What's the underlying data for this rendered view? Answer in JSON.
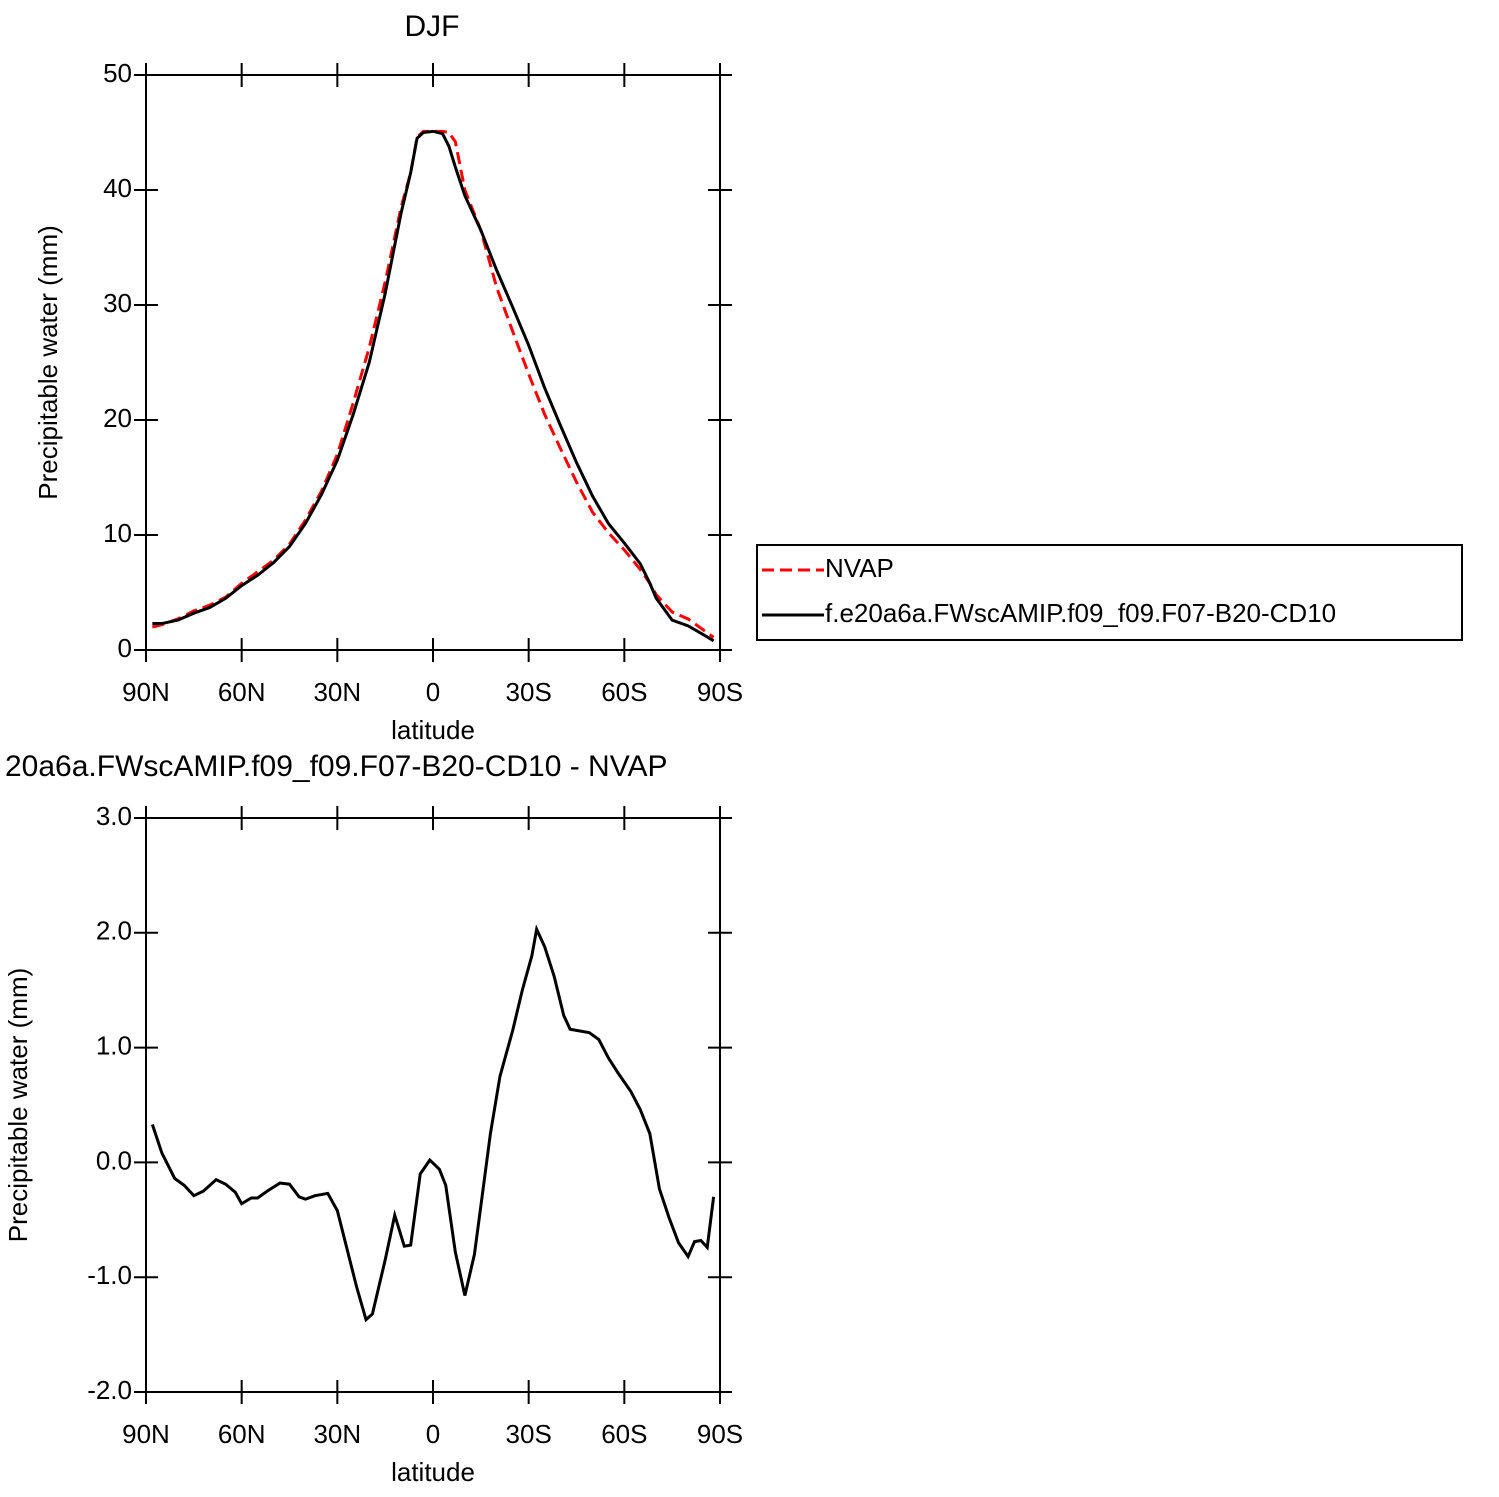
{
  "chart_data": [
    {
      "type": "line",
      "title": "DJF",
      "xlabel": "latitude",
      "ylabel": "Precipitable water (mm)",
      "x": [
        88,
        85,
        80,
        75,
        70,
        65,
        60,
        55,
        50,
        45,
        40,
        35,
        30,
        25,
        20,
        15,
        10,
        7,
        5,
        3,
        0,
        -3,
        -5,
        -7,
        -10,
        -15,
        -20,
        -25,
        -30,
        -35,
        -40,
        -45,
        -50,
        -55,
        -60,
        -65,
        -68,
        -70,
        -75,
        -80,
        -85,
        -88
      ],
      "series": [
        {
          "name": "NVAP",
          "color": "#ff0000",
          "style": "dashed",
          "values": [
            2.0,
            2.2,
            2.7,
            3.4,
            3.9,
            4.6,
            5.8,
            6.8,
            7.8,
            9.2,
            11.3,
            13.8,
            17,
            21.5,
            26.3,
            32,
            38.5,
            41.5,
            44.6,
            45.1,
            45.1,
            45.1,
            45.0,
            44.2,
            40,
            36.5,
            31.5,
            27.7,
            24,
            20.5,
            17.5,
            14.6,
            12,
            10.2,
            8.7,
            7,
            5.8,
            4.8,
            3.3,
            2.7,
            1.7,
            1.1
          ]
        },
        {
          "name": "f.e20a6a.FWscAMIP.f09_f09.F07-B20-CD10",
          "color": "#000000",
          "style": "solid",
          "values": [
            2.3,
            2.3,
            2.6,
            3.2,
            3.7,
            4.5,
            5.6,
            6.5,
            7.6,
            9,
            11,
            13.5,
            16.5,
            20.5,
            25,
            31,
            38,
            41.5,
            44.5,
            45,
            45.1,
            44.9,
            43.8,
            42,
            39.5,
            36.5,
            33,
            29.8,
            26.5,
            22.8,
            19.5,
            16.3,
            13.4,
            11,
            9.3,
            7.5,
            5.8,
            4.5,
            2.6,
            2.1,
            1.3,
            0.8
          ]
        }
      ],
      "xlim": [
        90,
        -90
      ],
      "xticks": [
        {
          "value": 90,
          "label": "90N"
        },
        {
          "value": 60,
          "label": "60N"
        },
        {
          "value": 30,
          "label": "30N"
        },
        0,
        {
          "value": -30,
          "label": "30S"
        },
        {
          "value": -60,
          "label": "60S"
        },
        {
          "value": -90,
          "label": "90S"
        }
      ],
      "ylim": [
        0,
        50
      ],
      "yticks": [
        0,
        10,
        20,
        30,
        40,
        50
      ]
    },
    {
      "type": "line",
      "title": "20a6a.FWscAMIP.f09_f09.F07-B20-CD10 - NVAP",
      "xlabel": "latitude",
      "ylabel": "Precipitable water (mm)",
      "x": [
        88,
        85,
        81,
        78,
        75,
        72,
        68,
        65,
        62,
        60,
        57,
        55,
        52,
        48,
        45,
        42,
        40,
        37,
        33,
        30,
        27,
        24,
        21,
        19,
        15,
        12,
        9,
        7,
        4,
        1,
        -2,
        -4,
        -7,
        -10,
        -13,
        -15,
        -18,
        -21,
        -25,
        -28,
        -31,
        -32.5,
        -35,
        -38,
        -41,
        -43,
        -49,
        -52,
        -55,
        -58,
        -62,
        -65,
        -68,
        -71,
        -74,
        -77,
        -80,
        -82,
        -84,
        -86,
        -88
      ],
      "values": [
        0.33,
        0.08,
        -0.14,
        -0.2,
        -0.29,
        -0.25,
        -0.15,
        -0.19,
        -0.26,
        -0.36,
        -0.31,
        -0.31,
        -0.25,
        -0.18,
        -0.19,
        -0.3,
        -0.32,
        -0.29,
        -0.27,
        -0.42,
        -0.75,
        -1.08,
        -1.37,
        -1.32,
        -0.85,
        -0.46,
        -0.73,
        -0.72,
        -0.1,
        0.02,
        -0.06,
        -0.2,
        -0.78,
        -1.16,
        -0.8,
        -0.38,
        0.25,
        0.75,
        1.15,
        1.5,
        1.8,
        2.03,
        1.88,
        1.62,
        1.28,
        1.16,
        1.13,
        1.07,
        0.91,
        0.78,
        0.62,
        0.46,
        0.25,
        -0.23,
        -0.48,
        -0.7,
        -0.82,
        -0.69,
        -0.68,
        -0.74,
        -0.3
      ],
      "color": "#000000",
      "xlim": [
        90,
        -90
      ],
      "xticks": [
        {
          "value": 90,
          "label": "90N"
        },
        {
          "value": 60,
          "label": "60N"
        },
        {
          "value": 30,
          "label": "30N"
        },
        0,
        {
          "value": -30,
          "label": "30S"
        },
        {
          "value": -60,
          "label": "60S"
        },
        {
          "value": -90,
          "label": "90S"
        }
      ],
      "ylim": [
        -2,
        3
      ],
      "yticks": [
        {
          "value": 3,
          "label": "3.0"
        },
        {
          "value": 2,
          "label": "2.0"
        },
        {
          "value": 1,
          "label": "1.0"
        },
        {
          "value": 0,
          "label": "0.0"
        },
        {
          "value": -1,
          "label": "-1.0"
        },
        {
          "value": -2,
          "label": "-2.0"
        }
      ]
    }
  ]
}
